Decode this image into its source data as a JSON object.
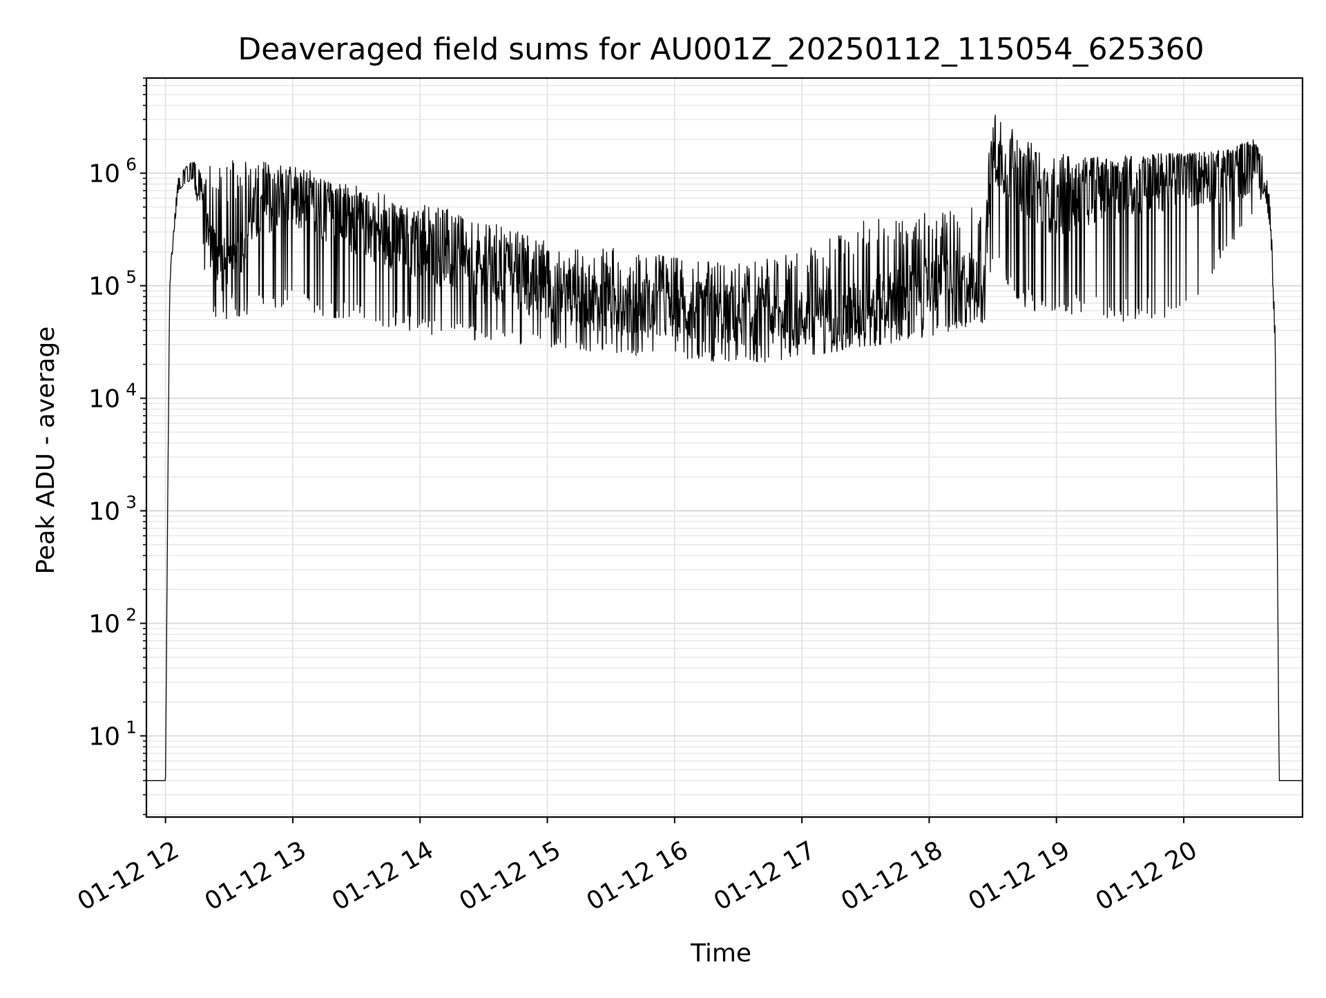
{
  "chart_data": {
    "type": "line",
    "title": "Deaveraged field sums for AU001Z_20250112_115054_625360",
    "xlabel": "Time",
    "ylabel": "Peak ADU - average",
    "yscale": "log",
    "xlim": [
      "2025-01-12 11:51",
      "2025-01-12 20:56"
    ],
    "ylim": [
      1.9,
      7000000
    ],
    "grid": true,
    "grid_minor": true,
    "line_color": "#000000",
    "x_tick_labels": [
      "01-12 12",
      "01-12 13",
      "01-12 14",
      "01-12 15",
      "01-12 16",
      "01-12 17",
      "01-12 18",
      "01-12 19",
      "01-12 20"
    ],
    "x_ticks": [
      "2025-01-12 12:00",
      "2025-01-12 13:00",
      "2025-01-12 14:00",
      "2025-01-12 15:00",
      "2025-01-12 16:00",
      "2025-01-12 17:00",
      "2025-01-12 18:00",
      "2025-01-12 19:00",
      "2025-01-12 20:00"
    ],
    "y_tick_labels": [
      {
        "base": "10",
        "exp": "1",
        "value": 10
      },
      {
        "base": "10",
        "exp": "2",
        "value": 100
      },
      {
        "base": "10",
        "exp": "3",
        "value": 1000
      },
      {
        "base": "10",
        "exp": "4",
        "value": 10000
      },
      {
        "base": "10",
        "exp": "5",
        "value": 100000
      },
      {
        "base": "10",
        "exp": "6",
        "value": 1000000
      }
    ],
    "series": [
      {
        "x": [
          "2025-01-12 11:51",
          "2025-01-12 12:00",
          "2025-01-12 12:01",
          "2025-01-12 12:02",
          "2025-01-12 12:04",
          "2025-01-12 12:06",
          "2025-01-12 12:09",
          "2025-01-12 12:13",
          "2025-01-12 12:17",
          "2025-01-12 12:20",
          "2025-01-12 12:24",
          "2025-01-12 12:30",
          "2025-01-12 12:40",
          "2025-01-12 12:55",
          "2025-01-12 13:10",
          "2025-01-12 13:30",
          "2025-01-12 13:50",
          "2025-01-12 14:10",
          "2025-01-12 14:30",
          "2025-01-12 15:00",
          "2025-01-12 15:30",
          "2025-01-12 16:00",
          "2025-01-12 16:30",
          "2025-01-12 17:00",
          "2025-01-12 17:30",
          "2025-01-12 18:00",
          "2025-01-12 18:26",
          "2025-01-12 18:30",
          "2025-01-12 18:45",
          "2025-01-12 19:00",
          "2025-01-12 19:20",
          "2025-01-12 19:40",
          "2025-01-12 20:00",
          "2025-01-12 20:20",
          "2025-01-12 20:33",
          "2025-01-12 20:38",
          "2025-01-12 20:41",
          "2025-01-12 20:43",
          "2025-01-12 20:44",
          "2025-01-12 20:45",
          "2025-01-12 20:56"
        ],
        "y": [
          4,
          4,
          1000,
          100000,
          300000,
          700000,
          900000,
          1100000,
          700000,
          300000,
          200000,
          120000,
          400000,
          600000,
          500000,
          350000,
          250000,
          180000,
          130000,
          90000,
          70000,
          60000,
          55000,
          50000,
          60000,
          100000,
          120000,
          1500000,
          800000,
          500000,
          700000,
          800000,
          900000,
          1000000,
          1200000,
          900000,
          300000,
          30000,
          1000,
          4,
          4
        ],
        "envelope_upper": [
          4,
          4,
          1000,
          120000,
          400000,
          900000,
          1100000,
          1300000,
          1000000,
          1200000,
          1300000,
          1300000,
          1350000,
          1200000,
          1050000,
          800000,
          600000,
          500000,
          400000,
          250000,
          220000,
          180000,
          160000,
          200000,
          400000,
          450000,
          550000,
          3500000,
          2000000,
          1500000,
          1400000,
          1500000,
          1500000,
          1600000,
          2000000,
          1500000,
          500000,
          50000,
          1000,
          4,
          4
        ],
        "envelope_lower": [
          4,
          4,
          1000,
          100000,
          300000,
          700000,
          800000,
          900000,
          300000,
          60000,
          50000,
          50000,
          55000,
          60000,
          55000,
          45000,
          40000,
          35000,
          32000,
          28000,
          25000,
          22000,
          20000,
          22000,
          28000,
          35000,
          45000,
          150000,
          60000,
          55000,
          50000,
          45000,
          45000,
          200000,
          400000,
          700000,
          300000,
          30000,
          1000,
          4,
          4
        ]
      }
    ]
  }
}
